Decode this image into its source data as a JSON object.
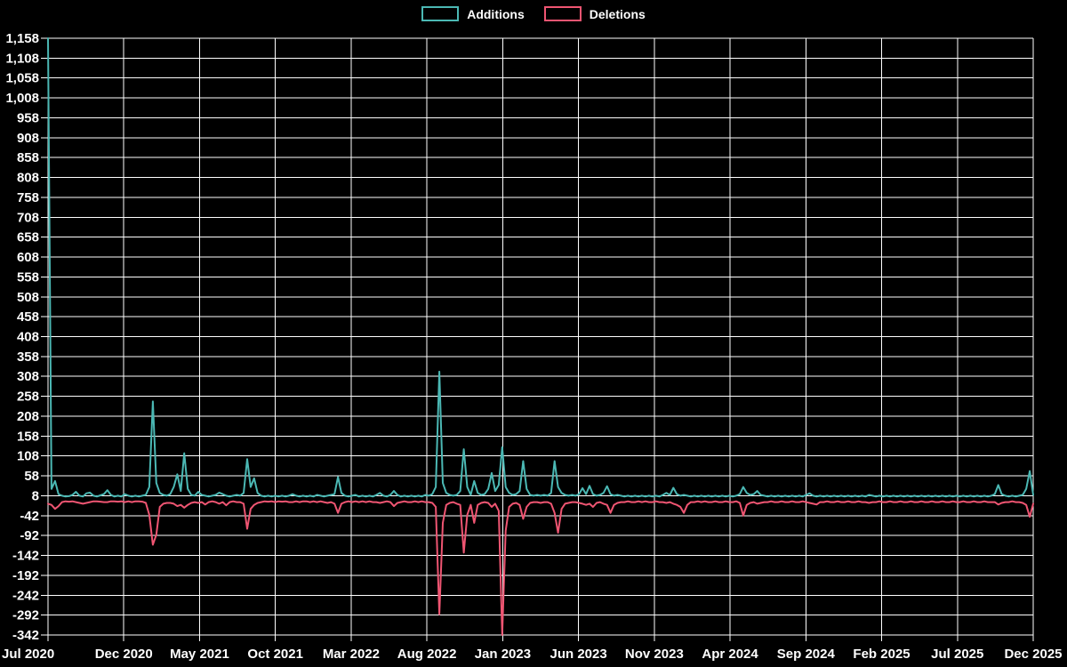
{
  "legend": {
    "items": [
      {
        "label": "Additions",
        "color": "#4bb8b4"
      },
      {
        "label": "Deletions",
        "color": "#ef5572"
      }
    ]
  },
  "colors": {
    "background": "#000000",
    "grid": "#ffffff",
    "text": "#ffffff",
    "additions": "#4bb8b4",
    "deletions": "#ef5572"
  },
  "chart_data": {
    "type": "line",
    "title": "",
    "xlabel": "",
    "ylabel": "",
    "grid": true,
    "legend_position": "top-center",
    "ylim": [
      -342,
      1158
    ],
    "y_tick_step": 50,
    "y_tick_labels": [
      "1,158",
      "1,108",
      "1,058",
      "1,008",
      "958",
      "908",
      "858",
      "808",
      "758",
      "708",
      "658",
      "608",
      "558",
      "508",
      "458",
      "408",
      "358",
      "308",
      "258",
      "208",
      "158",
      "108",
      "58",
      "8",
      "-42",
      "-92",
      "-142",
      "-192",
      "-242",
      "-292",
      "-342"
    ],
    "x_tick_labels": [
      "Jul 2020",
      "Dec 2020",
      "May 2021",
      "Oct 2021",
      "Mar 2022",
      "Aug 2022",
      "Jan 2023",
      "Jun 2023",
      "Nov 2023",
      "Apr 2024",
      "Sep 2024",
      "Feb 2025",
      "Jul 2025",
      "Dec 2025"
    ],
    "x_unit": "week",
    "x_start_label": "Jul 2020",
    "x_end_label": "Dec 2025",
    "series": [
      {
        "name": "Additions",
        "color": "#4bb8b4",
        "values": [
          1158,
          25,
          45,
          12,
          8,
          6,
          7,
          10,
          18,
          8,
          6,
          14,
          16,
          8,
          6,
          9,
          12,
          22,
          10,
          6,
          8,
          6,
          12,
          8,
          6,
          8,
          6,
          8,
          10,
          30,
          245,
          40,
          15,
          10,
          8,
          12,
          30,
          62,
          20,
          115,
          25,
          10,
          8,
          18,
          10,
          8,
          6,
          8,
          10,
          16,
          12,
          8,
          6,
          8,
          10,
          8,
          15,
          100,
          30,
          52,
          15,
          8,
          6,
          8,
          6,
          8,
          6,
          8,
          6,
          8,
          12,
          8,
          6,
          8,
          6,
          8,
          6,
          10,
          8,
          6,
          8,
          10,
          12,
          55,
          15,
          8,
          6,
          8,
          10,
          6,
          8,
          6,
          8,
          6,
          10,
          15,
          8,
          6,
          10,
          20,
          10,
          6,
          8,
          6,
          8,
          6,
          8,
          6,
          10,
          8,
          12,
          30,
          320,
          40,
          15,
          10,
          8,
          10,
          20,
          125,
          30,
          10,
          45,
          15,
          10,
          12,
          25,
          65,
          20,
          35,
          130,
          30,
          15,
          10,
          12,
          20,
          95,
          25,
          10,
          8,
          10,
          8,
          10,
          8,
          15,
          95,
          30,
          15,
          10,
          8,
          10,
          8,
          12,
          27,
          12,
          33,
          12,
          8,
          10,
          15,
          32,
          12,
          8,
          10,
          8,
          6,
          8,
          6,
          8,
          6,
          8,
          6,
          8,
          6,
          8,
          6,
          10,
          15,
          10,
          28,
          12,
          8,
          10,
          8,
          6,
          8,
          6,
          8,
          6,
          8,
          6,
          8,
          6,
          8,
          6,
          8,
          6,
          8,
          12,
          30,
          15,
          10,
          12,
          20,
          10,
          8,
          6,
          8,
          6,
          8,
          6,
          8,
          6,
          8,
          6,
          8,
          6,
          10,
          14,
          8,
          6,
          8,
          6,
          8,
          6,
          8,
          6,
          8,
          6,
          8,
          6,
          8,
          6,
          8,
          6,
          10,
          8,
          6,
          8,
          6,
          8,
          6,
          8,
          6,
          8,
          6,
          8,
          6,
          8,
          6,
          8,
          6,
          8,
          6,
          8,
          6,
          8,
          6,
          8,
          6,
          8,
          6,
          8,
          6,
          8,
          6,
          8,
          6,
          8,
          6,
          8,
          12,
          35,
          12,
          8,
          6,
          8,
          6,
          8,
          10,
          25,
          70,
          10
        ]
      },
      {
        "name": "Deletions",
        "color": "#ef5572",
        "values": [
          -12,
          -15,
          -25,
          -18,
          -8,
          -6,
          -7,
          -6,
          -8,
          -10,
          -12,
          -10,
          -8,
          -6,
          -6,
          -7,
          -8,
          -8,
          -6,
          -6,
          -7,
          -6,
          -8,
          -6,
          -8,
          -6,
          -6,
          -7,
          -10,
          -40,
          -115,
          -90,
          -20,
          -12,
          -10,
          -10,
          -12,
          -18,
          -15,
          -22,
          -15,
          -10,
          -8,
          -10,
          -8,
          -14,
          -8,
          -6,
          -8,
          -12,
          -8,
          -16,
          -8,
          -6,
          -8,
          -8,
          -12,
          -75,
          -25,
          -15,
          -10,
          -8,
          -6,
          -7,
          -6,
          -8,
          -6,
          -7,
          -6,
          -8,
          -8,
          -6,
          -8,
          -6,
          -6,
          -8,
          -6,
          -8,
          -6,
          -8,
          -10,
          -8,
          -12,
          -35,
          -12,
          -8,
          -6,
          -8,
          -6,
          -8,
          -6,
          -8,
          -6,
          -8,
          -8,
          -10,
          -8,
          -6,
          -8,
          -18,
          -10,
          -8,
          -6,
          -8,
          -8,
          -6,
          -8,
          -6,
          -8,
          -8,
          -10,
          -20,
          -290,
          -60,
          -15,
          -10,
          -8,
          -12,
          -15,
          -135,
          -40,
          -15,
          -60,
          -15,
          -10,
          -8,
          -10,
          -20,
          -12,
          -30,
          -342,
          -80,
          -20,
          -12,
          -10,
          -15,
          -50,
          -20,
          -10,
          -8,
          -8,
          -10,
          -8,
          -8,
          -12,
          -35,
          -85,
          -25,
          -12,
          -10,
          -8,
          -8,
          -10,
          -12,
          -15,
          -12,
          -20,
          -10,
          -8,
          -12,
          -15,
          -35,
          -15,
          -10,
          -8,
          -8,
          -6,
          -8,
          -8,
          -6,
          -8,
          -6,
          -8,
          -8,
          -6,
          -8,
          -8,
          -10,
          -8,
          -12,
          -15,
          -20,
          -35,
          -15,
          -8,
          -8,
          -6,
          -8,
          -6,
          -8,
          -8,
          -6,
          -8,
          -8,
          -6,
          -8,
          -8,
          -6,
          -10,
          -42,
          -15,
          -10,
          -8,
          -12,
          -10,
          -8,
          -8,
          -6,
          -8,
          -8,
          -6,
          -8,
          -8,
          -6,
          -8,
          -8,
          -6,
          -8,
          -10,
          -12,
          -14,
          -8,
          -8,
          -6,
          -8,
          -8,
          -6,
          -8,
          -8,
          -6,
          -8,
          -8,
          -6,
          -8,
          -8,
          -10,
          -8,
          -8,
          -6,
          -8,
          -8,
          -6,
          -8,
          -8,
          -6,
          -8,
          -8,
          -6,
          -8,
          -8,
          -6,
          -8,
          -8,
          -6,
          -8,
          -8,
          -6,
          -8,
          -8,
          -6,
          -8,
          -8,
          -6,
          -8,
          -8,
          -6,
          -8,
          -8,
          -6,
          -8,
          -8,
          -8,
          -14,
          -10,
          -8,
          -8,
          -6,
          -8,
          -8,
          -10,
          -15,
          -45,
          -12
        ]
      }
    ]
  }
}
